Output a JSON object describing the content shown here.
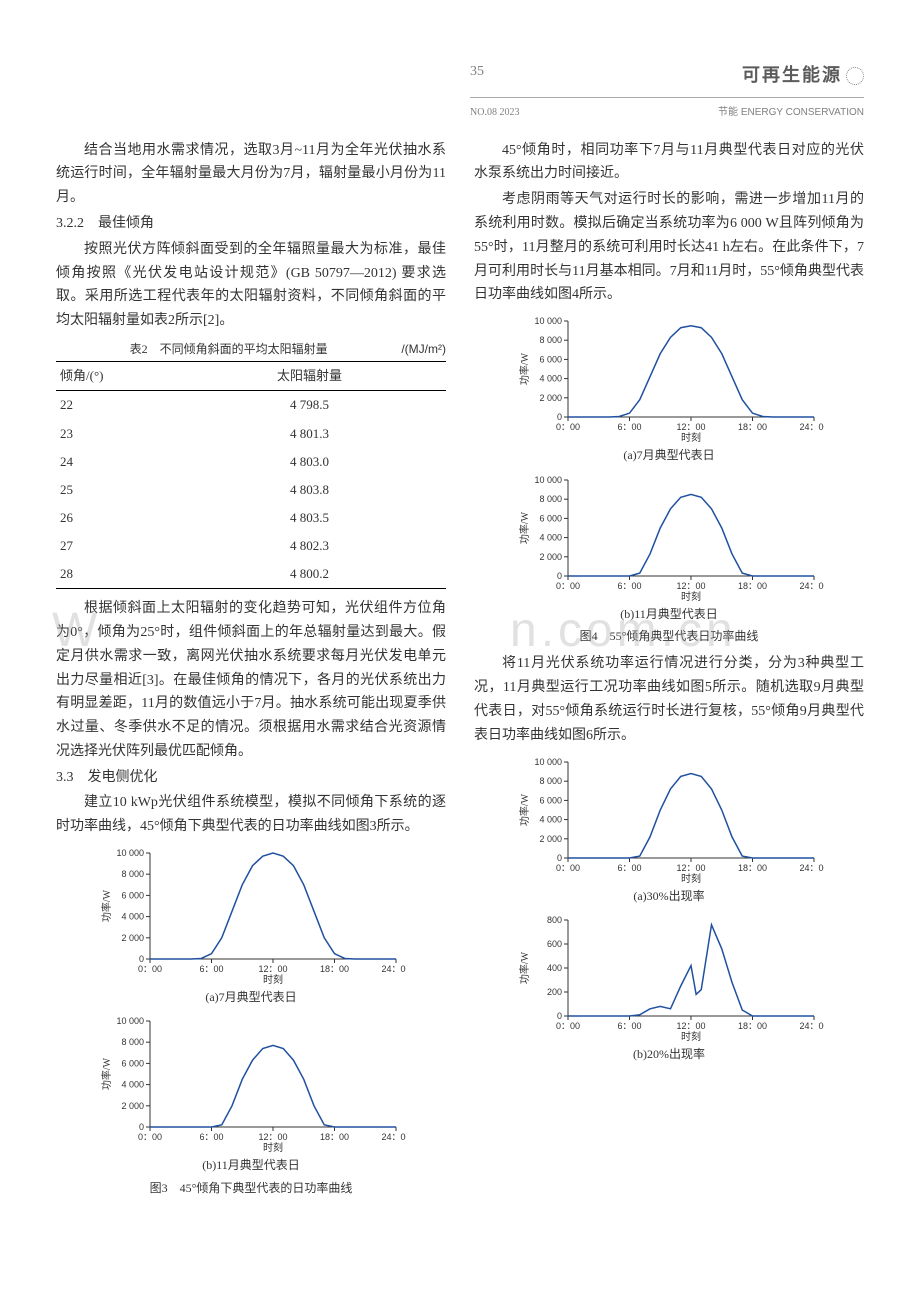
{
  "header": {
    "page_number": "35",
    "brand": "可再生能源",
    "issue": "NO.08 2023",
    "section_en": "节能  ENERGY CONSERVATION"
  },
  "watermark": {
    "left": "W",
    "right": "n.com.cn"
  },
  "left_col": {
    "p1": "结合当地用水需求情况，选取3月~11月为全年光伏抽水系统运行时间，全年辐射量最大月份为7月，辐射量最小月份为11月。",
    "s322": "3.2.2　最佳倾角",
    "p2": "按照光伏方阵倾斜面受到的全年辐照量最大为标准，最佳倾角按照《光伏发电站设计规范》(GB 50797—2012) 要求选取。采用所选工程代表年的太阳辐射资料，不同倾角斜面的平均太阳辐射量如表2所示[2]。",
    "table2": {
      "title": "表2　不同倾角斜面的平均太阳辐射量",
      "unit": "/(MJ/m²)",
      "col1": "倾角/(°)",
      "col2": "太阳辐射量",
      "rows": [
        [
          "22",
          "4 798.5"
        ],
        [
          "23",
          "4 801.3"
        ],
        [
          "24",
          "4 803.0"
        ],
        [
          "25",
          "4 803.8"
        ],
        [
          "26",
          "4 803.5"
        ],
        [
          "27",
          "4 802.3"
        ],
        [
          "28",
          "4 800.2"
        ]
      ]
    },
    "p3": "根据倾斜面上太阳辐射的变化趋势可知，光伏组件方位角为0°，倾角为25°时，组件倾斜面上的年总辐射量达到最大。假定月供水需求一致，离网光伏抽水系统要求每月光伏发电单元出力尽量相近[3]。在最佳倾角的情况下，各月的光伏系统出力有明显差距，11月的数值远小于7月。抽水系统可能出现夏季供水过量、冬季供水不足的情况。须根据用水需求结合光资源情况选择光伏阵列最优匹配倾角。",
    "s33": "3.3　发电侧优化",
    "p4": "建立10 kWp光伏组件系统模型，模拟不同倾角下系统的逐时功率曲线，45°倾角下典型代表的日功率曲线如图3所示。",
    "fig3": {
      "ylabel": "功率/W",
      "xlabel": "时刻",
      "yticks": [
        "0",
        "2 000",
        "4 000",
        "6 000",
        "8 000",
        "10 000"
      ],
      "ymax": 10000,
      "xticks": [
        "0：00",
        "6：00",
        "12：00",
        "18：00",
        "24：00"
      ],
      "a": {
        "caption": "(a)7月典型代表日",
        "points": [
          [
            0,
            0
          ],
          [
            4,
            0
          ],
          [
            5,
            50
          ],
          [
            6,
            500
          ],
          [
            7,
            2000
          ],
          [
            8,
            4500
          ],
          [
            9,
            7000
          ],
          [
            10,
            8800
          ],
          [
            11,
            9700
          ],
          [
            12,
            10000
          ],
          [
            13,
            9700
          ],
          [
            14,
            8800
          ],
          [
            15,
            7000
          ],
          [
            16,
            4500
          ],
          [
            17,
            2000
          ],
          [
            18,
            500
          ],
          [
            19,
            50
          ],
          [
            20,
            0
          ],
          [
            24,
            0
          ]
        ]
      },
      "b": {
        "caption": "(b)11月典型代表日",
        "points": [
          [
            0,
            0
          ],
          [
            6,
            0
          ],
          [
            7,
            200
          ],
          [
            8,
            2000
          ],
          [
            9,
            4500
          ],
          [
            10,
            6300
          ],
          [
            11,
            7400
          ],
          [
            12,
            7700
          ],
          [
            13,
            7400
          ],
          [
            14,
            6300
          ],
          [
            15,
            4500
          ],
          [
            16,
            2000
          ],
          [
            17,
            200
          ],
          [
            18,
            0
          ],
          [
            24,
            0
          ]
        ]
      },
      "caption": "图3　45°倾角下典型代表的日功率曲线"
    }
  },
  "right_col": {
    "p1": "45°倾角时，相同功率下7月与11月典型代表日对应的光伏水泵系统出力时间接近。",
    "p2": "考虑阴雨等天气对运行时长的影响，需进一步增加11月的系统利用时数。模拟后确定当系统功率为6 000 W且阵列倾角为55°时，11月整月的系统可利用时长达41 h左右。在此条件下，7月可利用时长与11月基本相同。7月和11月时，55°倾角典型代表日功率曲线如图4所示。",
    "fig4": {
      "ylabel": "功率/W",
      "xlabel": "时刻",
      "yticks": [
        "0",
        "2 000",
        "4 000",
        "6 000",
        "8 000",
        "10 000"
      ],
      "ymax": 10000,
      "xticks": [
        "0：00",
        "6：00",
        "12：00",
        "18：00",
        "24：00"
      ],
      "a": {
        "caption": "(a)7月典型代表日",
        "points": [
          [
            0,
            0
          ],
          [
            4,
            0
          ],
          [
            5,
            50
          ],
          [
            6,
            400
          ],
          [
            7,
            1800
          ],
          [
            8,
            4200
          ],
          [
            9,
            6600
          ],
          [
            10,
            8300
          ],
          [
            11,
            9300
          ],
          [
            12,
            9500
          ],
          [
            13,
            9300
          ],
          [
            14,
            8300
          ],
          [
            15,
            6600
          ],
          [
            16,
            4200
          ],
          [
            17,
            1800
          ],
          [
            18,
            400
          ],
          [
            19,
            50
          ],
          [
            20,
            0
          ],
          [
            24,
            0
          ]
        ]
      },
      "b": {
        "caption": "(b)11月典型代表日",
        "points": [
          [
            0,
            0
          ],
          [
            6,
            0
          ],
          [
            7,
            300
          ],
          [
            8,
            2300
          ],
          [
            9,
            5000
          ],
          [
            10,
            7000
          ],
          [
            11,
            8200
          ],
          [
            12,
            8500
          ],
          [
            13,
            8200
          ],
          [
            14,
            7000
          ],
          [
            15,
            5000
          ],
          [
            16,
            2300
          ],
          [
            17,
            300
          ],
          [
            18,
            0
          ],
          [
            24,
            0
          ]
        ]
      },
      "caption": "图4　55°倾角典型代表日功率曲线"
    },
    "p3": "将11月光伏系统功率运行情况进行分类，分为3种典型工况，11月典型运行工况功率曲线如图5所示。随机选取9月典型代表日，对55°倾角系统运行时长进行复核，55°倾角9月典型代表日功率曲线如图6所示。",
    "fig5": {
      "ylabel": "功率/W",
      "xlabel": "时刻",
      "a": {
        "caption": "(a)30%出现率",
        "yticks": [
          "0",
          "2 000",
          "4 000",
          "6 000",
          "8 000",
          "10 000"
        ],
        "ymax": 10000,
        "xticks": [
          "0：00",
          "6：00",
          "12：00",
          "18：00",
          "24：00"
        ],
        "points": [
          [
            0,
            0
          ],
          [
            6,
            0
          ],
          [
            7,
            200
          ],
          [
            8,
            2200
          ],
          [
            9,
            5000
          ],
          [
            10,
            7200
          ],
          [
            11,
            8500
          ],
          [
            12,
            8800
          ],
          [
            13,
            8500
          ],
          [
            14,
            7200
          ],
          [
            15,
            5000
          ],
          [
            16,
            2200
          ],
          [
            17,
            200
          ],
          [
            18,
            0
          ],
          [
            24,
            0
          ]
        ]
      },
      "b": {
        "caption": "(b)20%出现率",
        "yticks": [
          "0",
          "200",
          "400",
          "600",
          "800"
        ],
        "ymax": 800,
        "xticks": [
          "0：00",
          "6：00",
          "12：00",
          "18：00",
          "24：00"
        ],
        "points": [
          [
            0,
            0
          ],
          [
            6,
            0
          ],
          [
            7,
            10
          ],
          [
            8,
            60
          ],
          [
            9,
            80
          ],
          [
            10,
            60
          ],
          [
            11,
            250
          ],
          [
            12,
            420
          ],
          [
            12.5,
            180
          ],
          [
            13,
            220
          ],
          [
            14,
            760
          ],
          [
            15,
            560
          ],
          [
            16,
            280
          ],
          [
            17,
            50
          ],
          [
            18,
            0
          ],
          [
            24,
            0
          ]
        ]
      }
    }
  },
  "chart_style": {
    "curve_color": "#2050a0",
    "axis_color": "#333333",
    "background": "#ffffff"
  }
}
